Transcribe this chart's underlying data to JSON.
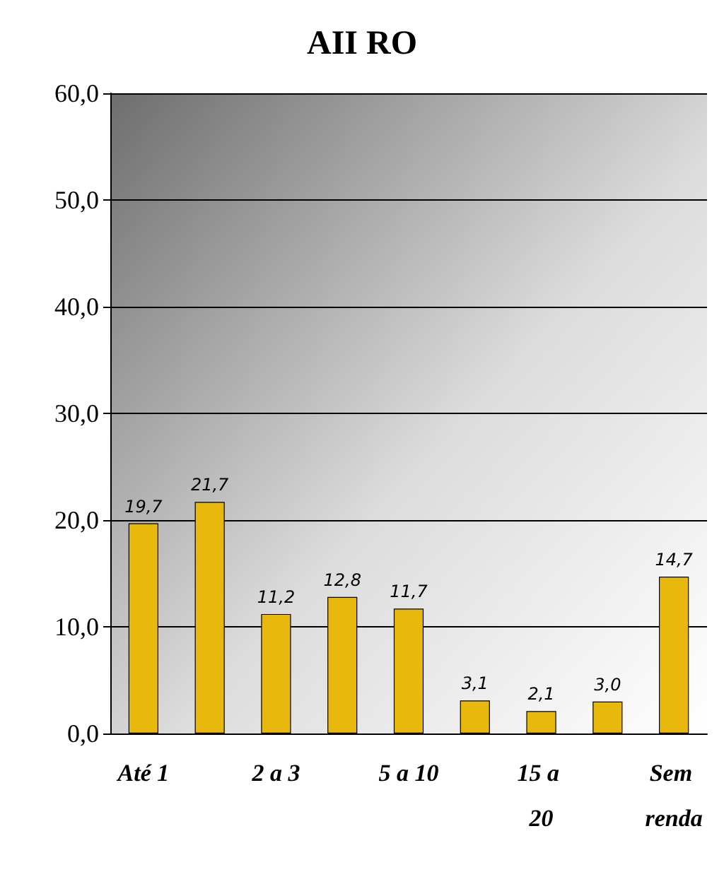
{
  "chart_data": {
    "type": "bar",
    "title": "AII RO",
    "categories": [
      "Até 1",
      null,
      "2 a 3",
      null,
      "5 a 10",
      null,
      "15 a 20",
      null,
      "Sem renda"
    ],
    "values": [
      19.7,
      21.7,
      11.2,
      12.8,
      11.7,
      3.1,
      2.1,
      3.0,
      14.7
    ],
    "value_labels": [
      "19,7",
      "21,7",
      "11,2",
      "12,8",
      "11,7",
      "3,1",
      "2,1",
      "3,0",
      "14,7"
    ],
    "color": "#e8b90c",
    "ylim": [
      0,
      60
    ],
    "yticks": [
      {
        "value": 0,
        "label": "0,0"
      },
      {
        "value": 10,
        "label": "10,0"
      },
      {
        "value": 20,
        "label": "20,0"
      },
      {
        "value": 30,
        "label": "30,0"
      },
      {
        "value": 40,
        "label": "40,0"
      },
      {
        "value": 50,
        "label": "50,0"
      },
      {
        "value": 60,
        "label": "60,0"
      }
    ],
    "grid": true
  }
}
